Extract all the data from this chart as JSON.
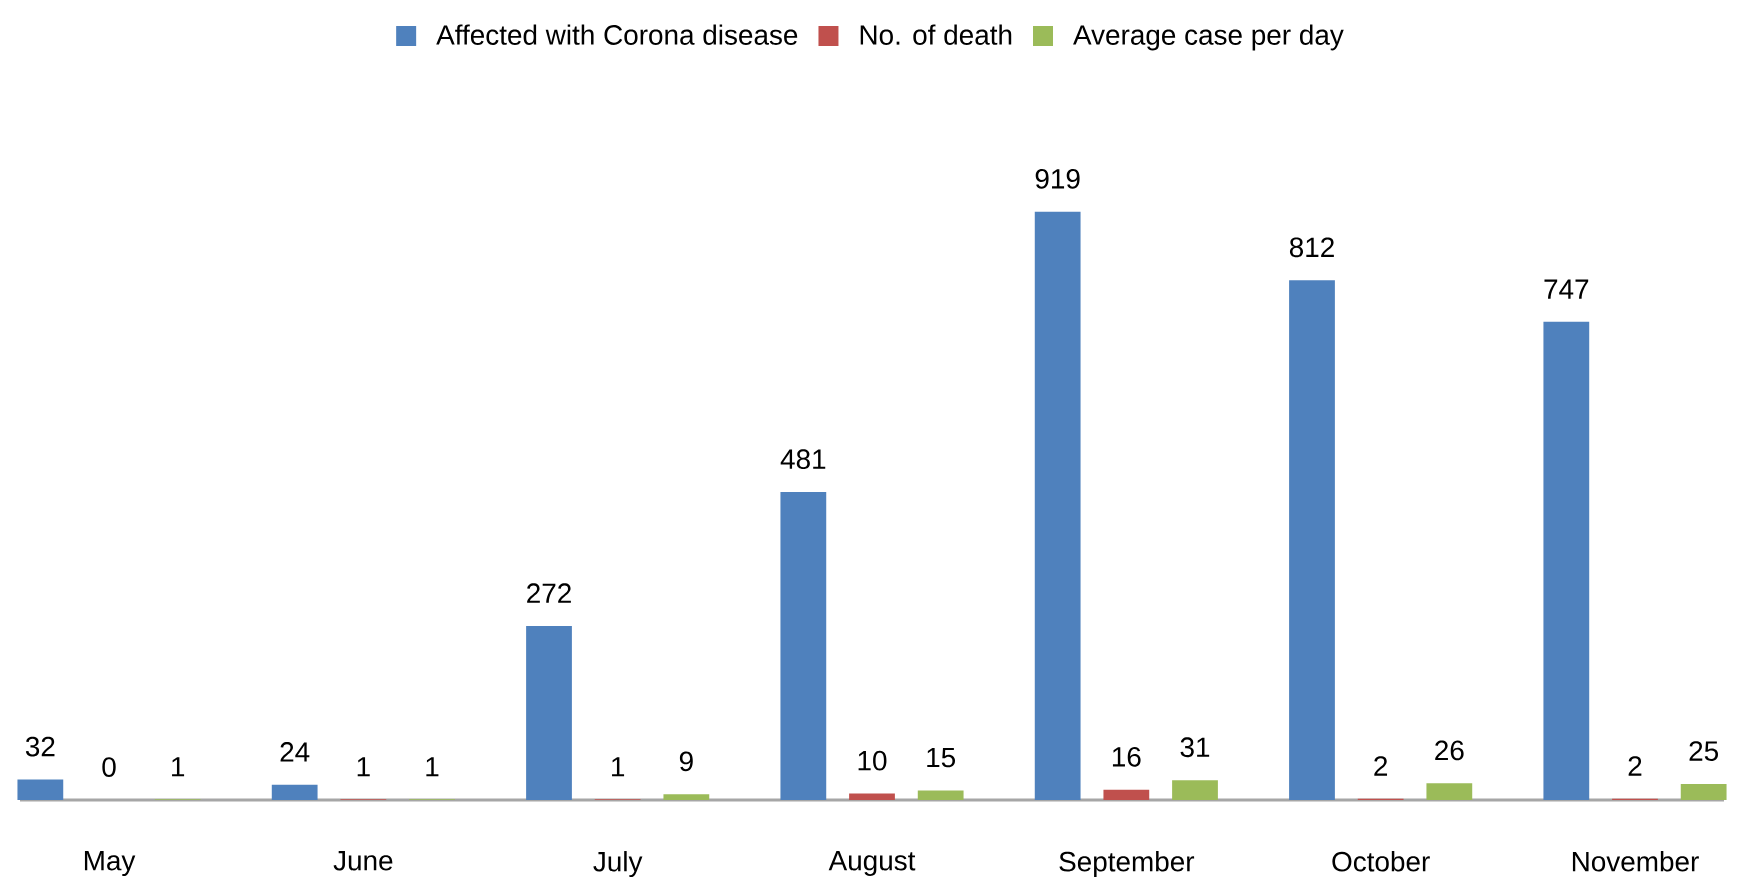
{
  "chart_data": {
    "type": "bar",
    "categories": [
      "May",
      "June",
      "July",
      "August",
      "September",
      "October",
      "November"
    ],
    "series": [
      {
        "name": "Affected with Corona disease",
        "color": "#4f81bd",
        "values": [
          32,
          24,
          272,
          481,
          919,
          812,
          747
        ]
      },
      {
        "name": "No. of death",
        "color": "#c0504d",
        "values": [
          0,
          1,
          1,
          10,
          16,
          2,
          2
        ]
      },
      {
        "name": "Average case per day",
        "color": "#9bbb59",
        "values": [
          1,
          1,
          9,
          15,
          31,
          26,
          25
        ]
      }
    ],
    "data_labels": true,
    "legend": "top"
  }
}
